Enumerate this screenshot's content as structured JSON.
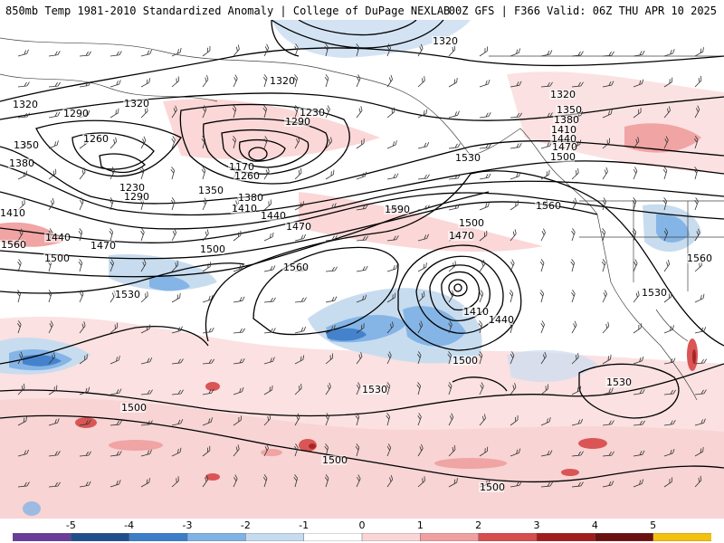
{
  "header": {
    "title_left": "850mb Temp 1981-2010 Standardized Anomaly | College of DuPage NEXLAB",
    "title_right": "00Z GFS | F366 Valid: 06Z THU APR 10 2025"
  },
  "colorbar": {
    "ticks": [
      "-5",
      "-4",
      "-3",
      "-2",
      "-1",
      "0",
      "1",
      "2",
      "3",
      "4",
      "5"
    ],
    "colors": [
      "#6a3d9a",
      "#1f4e8c",
      "#3b7dc9",
      "#7fb2e5",
      "#c6dbef",
      "#ffffff",
      "#fbd5d5",
      "#f0a0a0",
      "#d94c4c",
      "#a31a1a",
      "#6b0f0f",
      "#f4c20d"
    ]
  },
  "contours": {
    "labels": [
      {
        "text": "1320",
        "name": "contour-label-1320-a"
      },
      {
        "text": "1320",
        "name": "contour-label-1320-b"
      },
      {
        "text": "1320",
        "name": "contour-label-1320-c"
      },
      {
        "text": "1320",
        "name": "contour-label-1320-d"
      },
      {
        "text": "1320",
        "name": "contour-label-1320-e"
      },
      {
        "text": "1290",
        "name": "contour-label-1290-a"
      },
      {
        "text": "1290",
        "name": "contour-label-1290-b"
      },
      {
        "text": "1290",
        "name": "contour-label-1290-c"
      },
      {
        "text": "1260",
        "name": "contour-label-1260-a"
      },
      {
        "text": "1260",
        "name": "contour-label-1260-b"
      },
      {
        "text": "1230",
        "name": "contour-label-1230-a"
      },
      {
        "text": "1230",
        "name": "contour-label-1230-b"
      },
      {
        "text": "1170",
        "name": "contour-label-1170"
      },
      {
        "text": "1350",
        "name": "contour-label-1350-a"
      },
      {
        "text": "1350",
        "name": "contour-label-1350-b"
      },
      {
        "text": "1350",
        "name": "contour-label-1350-c"
      },
      {
        "text": "1380",
        "name": "contour-label-1380-a"
      },
      {
        "text": "1380",
        "name": "contour-label-1380-b"
      },
      {
        "text": "1380",
        "name": "contour-label-1380-c"
      },
      {
        "text": "1410",
        "name": "contour-label-1410-a"
      },
      {
        "text": "1410",
        "name": "contour-label-1410-b"
      },
      {
        "text": "1410",
        "name": "contour-label-1410-c"
      },
      {
        "text": "1410",
        "name": "contour-label-1410-d"
      },
      {
        "text": "1440",
        "name": "contour-label-1440-a"
      },
      {
        "text": "1440",
        "name": "contour-label-1440-b"
      },
      {
        "text": "1440",
        "name": "contour-label-1440-c"
      },
      {
        "text": "1440",
        "name": "contour-label-1440-d"
      },
      {
        "text": "1470",
        "name": "contour-label-1470-a"
      },
      {
        "text": "1470",
        "name": "contour-label-1470-b"
      },
      {
        "text": "1470",
        "name": "contour-label-1470-c"
      },
      {
        "text": "1470",
        "name": "contour-label-1470-d"
      },
      {
        "text": "1500",
        "name": "contour-label-1500-a"
      },
      {
        "text": "1500",
        "name": "contour-label-1500-b"
      },
      {
        "text": "1500",
        "name": "contour-label-1500-c"
      },
      {
        "text": "1500",
        "name": "contour-label-1500-d"
      },
      {
        "text": "1500",
        "name": "contour-label-1500-e"
      },
      {
        "text": "1500",
        "name": "contour-label-1500-f"
      },
      {
        "text": "1500",
        "name": "contour-label-1500-g"
      },
      {
        "text": "1500",
        "name": "contour-label-1500-h"
      },
      {
        "text": "1530",
        "name": "contour-label-1530-a"
      },
      {
        "text": "1530",
        "name": "contour-label-1530-b"
      },
      {
        "text": "1530",
        "name": "contour-label-1530-c"
      },
      {
        "text": "1530",
        "name": "contour-label-1530-d"
      },
      {
        "text": "1530",
        "name": "contour-label-1530-e"
      },
      {
        "text": "1560",
        "name": "contour-label-1560-a"
      },
      {
        "text": "1560",
        "name": "contour-label-1560-b"
      },
      {
        "text": "1560",
        "name": "contour-label-1560-c"
      },
      {
        "text": "1560",
        "name": "contour-label-1560-d"
      },
      {
        "text": "1590",
        "name": "contour-label-1590"
      }
    ]
  }
}
